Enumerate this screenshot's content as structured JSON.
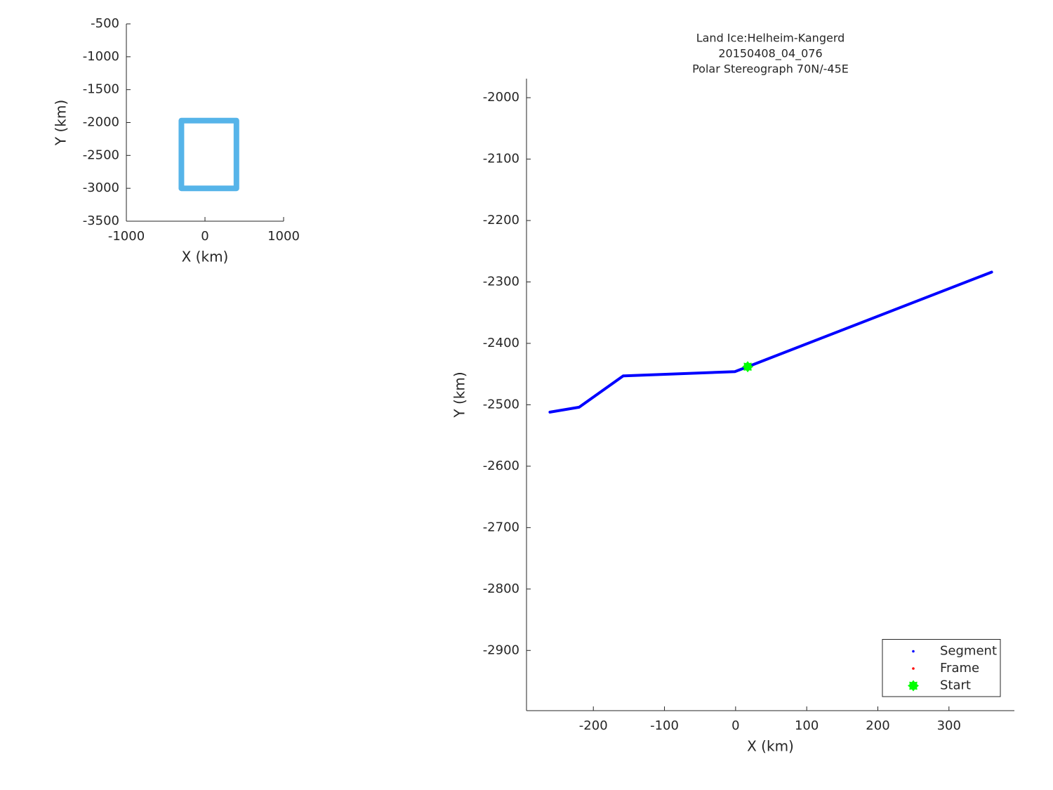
{
  "chart_data": [
    {
      "type": "line",
      "xlabel": "X (km)",
      "ylabel": "Y (km)",
      "xlim": [
        -1000,
        1000
      ],
      "xticks": [
        -1000,
        0,
        1000
      ],
      "ylim": [
        -3500,
        -500
      ],
      "yticks": [
        -500,
        -1000,
        -1500,
        -2000,
        -2500,
        -3000,
        -3500
      ],
      "series": [
        {
          "color": "#56b4e9",
          "marker": "line",
          "x": [
            -300,
            400,
            400,
            -300,
            -300
          ],
          "values": [
            -1970,
            -1970,
            -3000,
            -3000,
            -1970
          ]
        }
      ]
    },
    {
      "type": "line",
      "title": [
        "Land Ice:Helheim-Kangerd",
        "20150408_04_076",
        "Polar Stereograph 70N/-45E"
      ],
      "xlabel": "X (km)",
      "ylabel": "Y (km)",
      "xlim": [
        -294,
        392
      ],
      "xticks": [
        -200,
        -100,
        0,
        100,
        200,
        300
      ],
      "ylim": [
        -2998,
        -1969
      ],
      "yticks": [
        -2000,
        -2100,
        -2200,
        -2300,
        -2400,
        -2500,
        -2600,
        -2700,
        -2800,
        -2900
      ],
      "legend": "lower right",
      "series": [
        {
          "name": "Segment",
          "color": "#0000ff",
          "marker": "line",
          "x": [
            -261,
            -220,
            -158,
            -1,
            17,
            360
          ],
          "values": [
            -2512,
            -2504,
            -2453,
            -2446,
            -2438,
            -2284
          ]
        },
        {
          "name": "Frame",
          "color": "#ff0000",
          "marker": "line",
          "x": [],
          "values": []
        },
        {
          "name": "Start",
          "color": "#00ff00",
          "marker": "star",
          "x": [
            17
          ],
          "values": [
            -2438
          ]
        }
      ]
    }
  ]
}
